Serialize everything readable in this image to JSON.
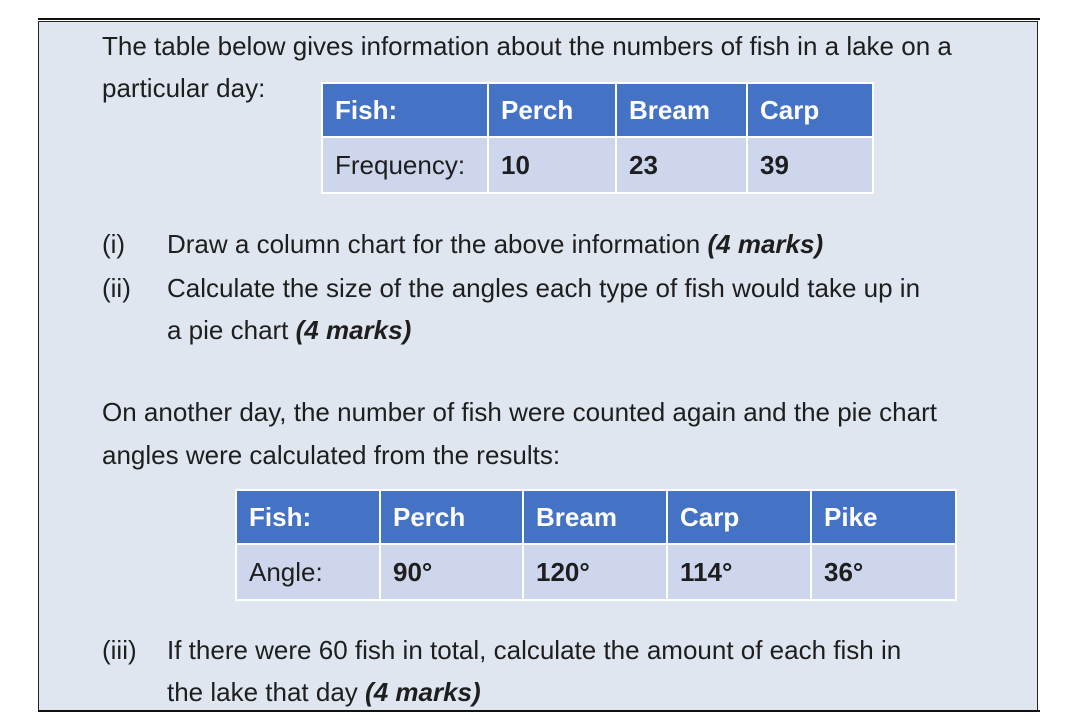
{
  "intro": {
    "line1": "The table below gives information about the numbers of fish in a lake on a",
    "line2": "particular day:"
  },
  "table1": {
    "headers": [
      "Fish:",
      "Perch",
      "Bream",
      "Carp"
    ],
    "row": [
      "Frequency:",
      "10",
      "23",
      "39"
    ]
  },
  "questions": {
    "q1": {
      "label": "(i)",
      "text": "Draw a column chart for the above information ",
      "marks": "(4 marks)"
    },
    "q2": {
      "label": "(ii)",
      "line1": "Calculate the size of the angles each type of fish would take up in",
      "line2": "a pie chart ",
      "marks": "(4 marks)"
    },
    "q3": {
      "label": "(iii)",
      "line1": "If there were 60 fish in total, calculate the amount of each fish in",
      "line2": "the lake that day ",
      "marks": "(4 marks)"
    }
  },
  "para2": {
    "line1": "On another day, the number of fish were counted again and the pie chart",
    "line2": "angles were calculated from the results:"
  },
  "table2": {
    "headers": [
      "Fish:",
      "Perch",
      "Bream",
      "Carp",
      "Pike"
    ],
    "row": [
      "Angle:",
      "90°",
      "120°",
      "114°",
      "36°"
    ]
  },
  "colors": {
    "header_fill": "#4472c4",
    "row_fill": "#cdd6ec",
    "panel_fill": "#dfe6ef"
  }
}
